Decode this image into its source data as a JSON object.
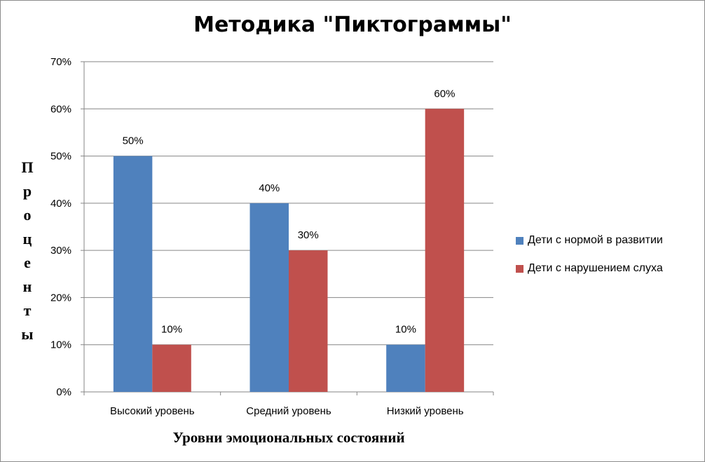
{
  "chart_data": {
    "type": "bar",
    "title": "Методика \"Пиктограммы\"",
    "xlabel": "Уровни эмоциональных состояний",
    "ylabel": "Проценты",
    "ylabel_shown": "П р о ц е н т ы",
    "categories": [
      "Высокий уровень",
      "Средний уровень",
      "Низкий уровень"
    ],
    "series": [
      {
        "name": "Дети с нормой в развитии",
        "values": [
          50,
          40,
          10
        ],
        "labels": [
          "50%",
          "40%",
          "10%"
        ],
        "color": "#4F81BD"
      },
      {
        "name": "Дети с нарушением слуха",
        "values": [
          10,
          30,
          60
        ],
        "labels": [
          "10%",
          "30%",
          "60%"
        ],
        "color": "#C0504D"
      }
    ],
    "ylim": [
      0,
      70
    ],
    "yticks": [
      0,
      10,
      20,
      30,
      40,
      50,
      60,
      70
    ],
    "ytick_labels": [
      "0%",
      "10%",
      "20%",
      "30%",
      "40%",
      "50%",
      "60%",
      "70%"
    ],
    "grid": true,
    "legend_position": "right"
  }
}
